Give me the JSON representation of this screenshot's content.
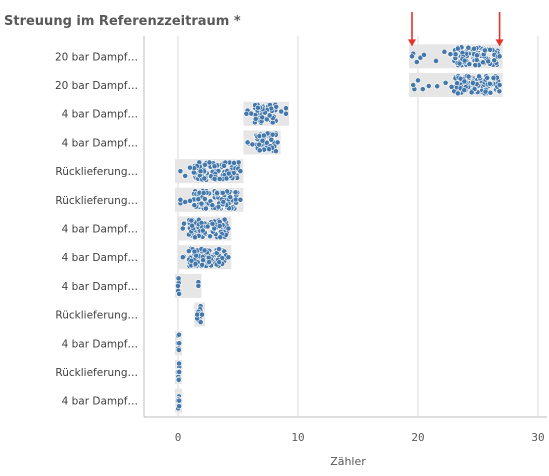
{
  "chart_data": {
    "type": "scatter",
    "title": "Streuung im Referenzzeitraum *",
    "xlabel": "Zähler",
    "ylabel": "",
    "xlim": [
      -3,
      31
    ],
    "xticks": [
      0,
      10,
      20,
      30
    ],
    "grid": true,
    "legend": "none",
    "point_color": "#4477aa",
    "box_color": "#e6e6e6",
    "marker_color": "#e8302c",
    "categories": [
      "20 bar Dampf…",
      "20 bar Dampf…",
      "4 bar Dampf…",
      "4 bar Dampf…",
      "Rücklieferung…",
      "Rücklieferung…",
      "4 bar Dampf…",
      "4 bar Dampf…",
      "4 bar Dampf…",
      "Rücklieferung…",
      "4 bar Dampf…",
      "Rücklieferung…",
      "4 bar Dampf…"
    ],
    "series": [
      {
        "min": 19.5,
        "max": 26.8,
        "box": [
          19.5,
          26.8
        ],
        "dense_from": 23.0,
        "sparse": [
          19.6,
          19.9,
          20.2,
          20.5,
          21.5,
          22.2,
          22.7
        ]
      },
      {
        "min": 19.6,
        "max": 26.8,
        "box": [
          19.5,
          26.8
        ],
        "dense_from": 23.0,
        "sparse": [
          19.7,
          20.0,
          20.4,
          20.9,
          21.6,
          22.3,
          22.8
        ]
      },
      {
        "min": 5.7,
        "max": 9.0,
        "box": [
          5.7,
          9.0
        ],
        "dense_from": 6.4,
        "dense_to": 8.2,
        "sparse": [
          5.8,
          6.1,
          8.6,
          9.0
        ]
      },
      {
        "min": 5.8,
        "max": 8.3,
        "box": [
          5.7,
          8.3
        ],
        "dense_from": 6.4,
        "dense_to": 8.2,
        "sparse": [
          5.9,
          6.2
        ]
      },
      {
        "min": 0.2,
        "max": 5.2,
        "box": [
          0.0,
          5.2
        ],
        "dense_from": 1.3,
        "dense_to": 5.1,
        "sparse": [
          0.2,
          0.6,
          1.0
        ]
      },
      {
        "min": 0.2,
        "max": 5.2,
        "box": [
          0.0,
          5.2
        ],
        "dense_from": 1.3,
        "dense_to": 5.1,
        "sparse": [
          0.2,
          0.6,
          1.0
        ]
      },
      {
        "min": 0.4,
        "max": 4.2,
        "box": [
          0.3,
          4.2
        ],
        "dense_from": 0.9,
        "dense_to": 4.1,
        "sparse": [
          0.5
        ]
      },
      {
        "min": 0.4,
        "max": 4.2,
        "box": [
          0.3,
          4.2
        ],
        "dense_from": 0.9,
        "dense_to": 4.1,
        "sparse": [
          0.5
        ]
      },
      {
        "min": 0.0,
        "max": 1.7,
        "box": [
          0.0,
          1.7
        ],
        "dense_from": 0.0,
        "dense_to": 0.1,
        "sparse": [
          1.7
        ]
      },
      {
        "min": 1.6,
        "max": 2.0,
        "box": [
          1.6,
          2.0
        ],
        "dense_from": 1.7,
        "dense_to": 2.0,
        "sparse": [
          1.6
        ]
      },
      {
        "min": 0.0,
        "max": 0.1,
        "box": [
          0.0,
          0.1
        ],
        "dense_from": 0.0,
        "dense_to": 0.1,
        "sparse": []
      },
      {
        "min": 0.0,
        "max": 0.1,
        "box": [
          0.0,
          0.1
        ],
        "dense_from": 0.0,
        "dense_to": 0.1,
        "sparse": []
      },
      {
        "min": 0.0,
        "max": 0.1,
        "box": [
          0.0,
          0.1
        ],
        "dense_from": 0.0,
        "dense_to": 0.1,
        "sparse": []
      }
    ],
    "annotations": [
      {
        "type": "arrow",
        "x": 19.5,
        "row": 0
      },
      {
        "type": "arrow",
        "x": 26.8,
        "row": 0
      }
    ]
  }
}
